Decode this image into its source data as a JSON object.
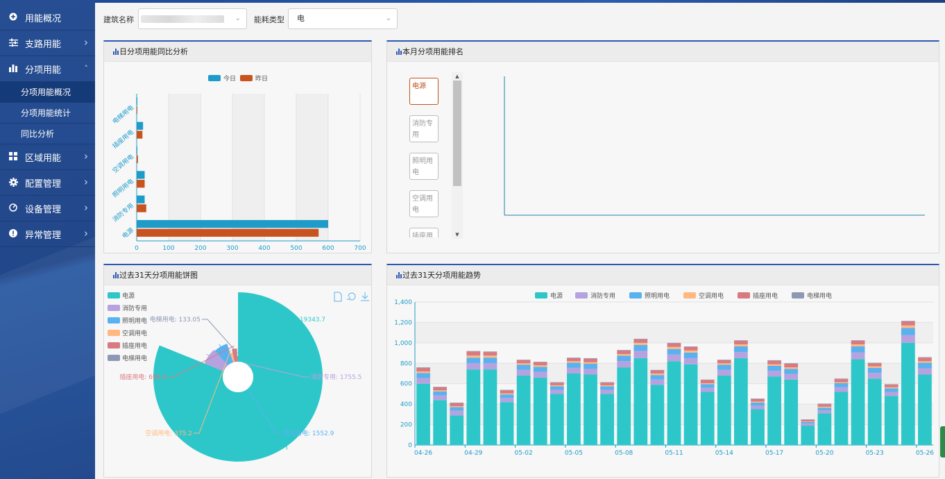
{
  "sidebar": {
    "items": [
      {
        "label": "用能概况",
        "icon": "plus-circle-icon"
      },
      {
        "label": "支路用能",
        "icon": "sliders-icon"
      },
      {
        "label": "分项用能",
        "icon": "bar-chart-icon",
        "expanded": true
      },
      {
        "label": "区域用能",
        "icon": "grid-icon"
      },
      {
        "label": "配置管理",
        "icon": "gear-icon"
      },
      {
        "label": "设备管理",
        "icon": "gauge-icon"
      },
      {
        "label": "异常管理",
        "icon": "alert-icon"
      }
    ],
    "subitems": [
      {
        "label": "分项用能概况",
        "active": true
      },
      {
        "label": "分项用能统计",
        "active": false
      },
      {
        "label": "同比分析",
        "active": false
      }
    ]
  },
  "filters": {
    "building_label": "建筑名称",
    "building_value": "",
    "energy_label": "能耗类型",
    "energy_value": "电"
  },
  "panels": {
    "daily_compare": {
      "title": "日分项用能同比分析"
    },
    "monthly_rank": {
      "title": "本月分项用能排名"
    },
    "pie31": {
      "title": "过去31天分项用能饼图"
    },
    "trend31": {
      "title": "过去31天分项用能趋势"
    }
  },
  "rank_buttons": [
    "电源",
    "消防专用",
    "照明用电",
    "空调用电",
    "插座用电"
  ],
  "colors": {
    "today": "#1f9bc9",
    "yesterday": "#c9531e",
    "panel_accent": "#2b57b3",
    "sidebar": "#22478a"
  },
  "chart_data": [
    {
      "type": "bar",
      "orientation": "horizontal",
      "categories": [
        "电源",
        "消防专用",
        "照明用电",
        "空调用电",
        "插座用电",
        "电梯用电"
      ],
      "series": [
        {
          "name": "今日",
          "values": [
            600,
            25,
            25,
            2,
            20,
            1
          ]
        },
        {
          "name": "昨日",
          "values": [
            570,
            30,
            25,
            4,
            18,
            1
          ]
        }
      ],
      "xticks": [
        0,
        100,
        200,
        300,
        400,
        500,
        600,
        700
      ],
      "xlim": [
        0,
        700
      ],
      "legend": "top-center"
    },
    {
      "type": "pie",
      "subtype": "rose",
      "categories": [
        "电源",
        "消防专用",
        "照明用电",
        "空调用电",
        "插座用电",
        "电梯用电"
      ],
      "values": [
        19343.7,
        1755.5,
        1552.9,
        375.2,
        696.8,
        133.05
      ],
      "labels": [
        "电源: 19343.7",
        "消防专用: 1755.5",
        "照明用电: 1552.9",
        "空调用电: 375.2",
        "插座用电: 696.8",
        "电梯用电: 133.05"
      ],
      "colors": [
        "#2ec7c9",
        "#b6a2de",
        "#5ab1ef",
        "#ffb980",
        "#d87a80",
        "#8d98b3"
      ],
      "legend": "top-left"
    },
    {
      "type": "bar",
      "stacked": true,
      "x": [
        "04-26",
        "04-27",
        "04-28",
        "04-29",
        "04-30",
        "05-01",
        "05-02",
        "05-03",
        "05-04",
        "05-05",
        "05-06",
        "05-07",
        "05-08",
        "05-09",
        "05-10",
        "05-11",
        "05-12",
        "05-13",
        "05-14",
        "05-15",
        "05-16",
        "05-17",
        "05-18",
        "05-19",
        "05-20",
        "05-21",
        "05-22",
        "05-23",
        "05-24",
        "05-25",
        "05-26"
      ],
      "xticks": [
        "04-26",
        "04-29",
        "05-02",
        "05-05",
        "05-08",
        "05-11",
        "05-14",
        "05-17",
        "05-20",
        "05-23",
        "05-26"
      ],
      "series": [
        {
          "name": "电源",
          "values": [
            600,
            440,
            290,
            740,
            740,
            420,
            680,
            660,
            500,
            700,
            690,
            500,
            760,
            850,
            590,
            820,
            790,
            520,
            680,
            850,
            350,
            670,
            640,
            190,
            310,
            520,
            840,
            650,
            480,
            1000,
            690
          ]
        },
        {
          "name": "消防专用",
          "values": [
            55,
            45,
            45,
            60,
            60,
            40,
            55,
            55,
            40,
            55,
            55,
            40,
            60,
            70,
            50,
            65,
            60,
            40,
            55,
            60,
            35,
            55,
            55,
            20,
            30,
            45,
            65,
            55,
            40,
            75,
            60
          ]
        },
        {
          "name": "照明用电",
          "values": [
            50,
            40,
            35,
            55,
            55,
            35,
            50,
            50,
            35,
            50,
            50,
            35,
            55,
            60,
            45,
            55,
            55,
            35,
            50,
            55,
            30,
            50,
            50,
            15,
            25,
            40,
            60,
            50,
            35,
            70,
            55
          ]
        },
        {
          "name": "空调用电",
          "values": [
            15,
            10,
            10,
            20,
            20,
            10,
            15,
            15,
            10,
            15,
            15,
            10,
            15,
            20,
            15,
            20,
            20,
            10,
            15,
            20,
            10,
            15,
            15,
            5,
            10,
            10,
            20,
            15,
            10,
            25,
            15
          ]
        },
        {
          "name": "插座用电",
          "values": [
            35,
            30,
            30,
            40,
            35,
            30,
            30,
            30,
            25,
            30,
            35,
            25,
            35,
            35,
            30,
            35,
            35,
            30,
            30,
            35,
            25,
            35,
            35,
            15,
            25,
            30,
            35,
            30,
            25,
            40,
            35
          ]
        },
        {
          "name": "电梯用电",
          "values": [
            5,
            5,
            5,
            5,
            5,
            5,
            5,
            5,
            5,
            5,
            5,
            5,
            5,
            5,
            5,
            5,
            5,
            5,
            5,
            5,
            5,
            5,
            5,
            5,
            5,
            5,
            5,
            5,
            5,
            5,
            5
          ]
        }
      ],
      "colors": [
        "#2ec7c9",
        "#b6a2de",
        "#5ab1ef",
        "#ffb980",
        "#d87a80",
        "#8d98b3"
      ],
      "yticks": [
        "0",
        "200",
        "400",
        "600",
        "800",
        "1,000",
        "1,200",
        "1,400"
      ],
      "ylim": [
        0,
        1400
      ],
      "legend": "top-center"
    }
  ]
}
